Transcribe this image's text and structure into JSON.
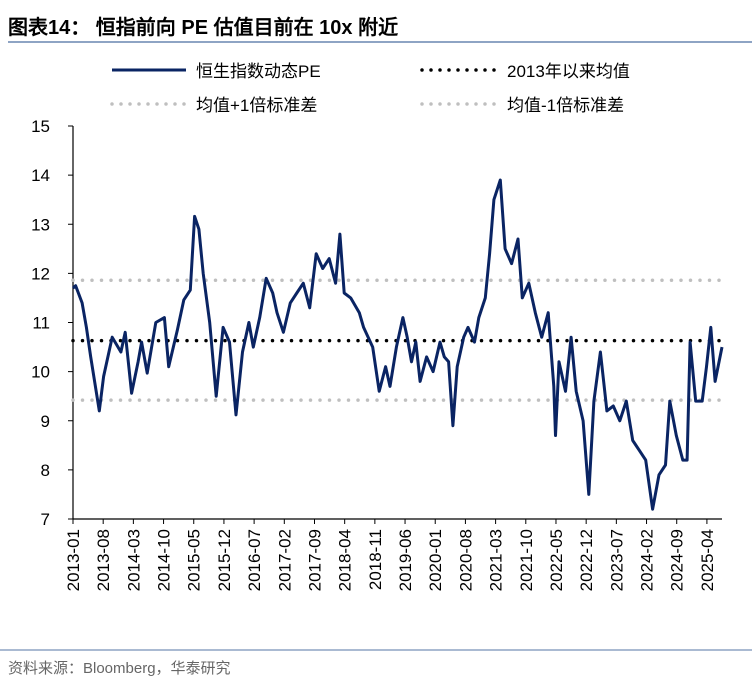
{
  "header": {
    "title": "图表14：  恒指前向 PE 估值目前在 10x 附近"
  },
  "footer": {
    "source": "资料来源：Bloomberg，华泰研究"
  },
  "colors": {
    "series": "#0a2463",
    "mean": "#000000",
    "band": "#bfbfbf",
    "rule": "#8ea4c4"
  },
  "chart_data": {
    "type": "line",
    "title": "恒指前向 PE 估值目前在 10x 附近",
    "xlabel": "",
    "ylabel": "",
    "ylim": [
      7,
      15
    ],
    "yticks": [
      "7",
      "8",
      "9",
      "10",
      "11",
      "12",
      "13",
      "14",
      "15"
    ],
    "x_unit": "months since 2013-01",
    "xlim": [
      0,
      150.5
    ],
    "xticks": [
      {
        "m": 0,
        "label": "2013-01"
      },
      {
        "m": 7,
        "label": "2013-08"
      },
      {
        "m": 14,
        "label": "2014-03"
      },
      {
        "m": 21,
        "label": "2014-10"
      },
      {
        "m": 28,
        "label": "2015-05"
      },
      {
        "m": 35,
        "label": "2015-12"
      },
      {
        "m": 42,
        "label": "2016-07"
      },
      {
        "m": 49,
        "label": "2017-02"
      },
      {
        "m": 56,
        "label": "2017-09"
      },
      {
        "m": 63,
        "label": "2018-04"
      },
      {
        "m": 70,
        "label": "2018-11"
      },
      {
        "m": 77,
        "label": "2019-06"
      },
      {
        "m": 84,
        "label": "2020-01"
      },
      {
        "m": 91,
        "label": "2020-08"
      },
      {
        "m": 98,
        "label": "2021-03"
      },
      {
        "m": 105,
        "label": "2021-10"
      },
      {
        "m": 112,
        "label": "2022-05"
      },
      {
        "m": 119,
        "label": "2022-12"
      },
      {
        "m": 126,
        "label": "2023-07"
      },
      {
        "m": 133,
        "label": "2024-02"
      },
      {
        "m": 140,
        "label": "2024-09"
      },
      {
        "m": 147,
        "label": "2025-04"
      }
    ],
    "legend": {
      "placement": "top",
      "entries": [
        "恒生指数动态PE",
        "2013年以来均值",
        "均值+1倍标准差",
        "均值-1倍标准差"
      ]
    },
    "reference_lines": {
      "mean": 10.63,
      "plus_1sd": 11.86,
      "minus_1sd": 9.42
    },
    "series": [
      {
        "name": "恒生指数动态PE",
        "x": [
          0,
          0.6,
          2.1,
          3.1,
          4.1,
          6.1,
          7.1,
          9.1,
          11.1,
          12.1,
          13.6,
          15.1,
          15.9,
          17.2,
          19.2,
          21.2,
          22.2,
          24.2,
          25.7,
          27.2,
          28.2,
          29.2,
          30.2,
          31.7,
          33.2,
          34.8,
          36.3,
          37.8,
          39.3,
          40.8,
          41.8,
          43.3,
          44.8,
          46.3,
          47.3,
          48.8,
          50.4,
          51.9,
          53.4,
          54.9,
          56.4,
          57.9,
          59.4,
          60.9,
          61.9,
          62.9,
          64.4,
          66.4,
          67.4,
          69.5,
          71.0,
          72.5,
          73.5,
          75.0,
          76.5,
          77.5,
          78.5,
          79.5,
          80.5,
          82.0,
          83.5,
          85.1,
          86.1,
          87.1,
          88.1,
          89.1,
          90.6,
          91.6,
          93.1,
          94.1,
          95.6,
          96.6,
          97.6,
          99.1,
          100.2,
          101.7,
          103.2,
          104.2,
          105.7,
          107.2,
          108.7,
          110.2,
          111.5,
          111.9,
          112.7,
          114.2,
          115.5,
          116.7,
          118.3,
          119.6,
          120.8,
          122.3,
          123.8,
          125.3,
          126.8,
          128.3,
          129.8,
          131.3,
          132.8,
          134.4,
          135.9,
          137.4,
          138.4,
          139.9,
          141.4,
          142.4,
          143.1,
          144.4,
          145.9,
          146.9,
          147.9,
          148.9,
          150.5
        ],
        "values": [
          11.7,
          11.75,
          11.4,
          10.9,
          10.3,
          9.2,
          9.9,
          10.7,
          10.4,
          10.8,
          9.56,
          10.2,
          10.6,
          9.97,
          11.0,
          11.1,
          10.1,
          10.85,
          11.46,
          11.66,
          13.16,
          12.9,
          12.0,
          11.0,
          9.5,
          10.9,
          10.6,
          9.12,
          10.4,
          11.0,
          10.5,
          11.1,
          11.9,
          11.6,
          11.2,
          10.8,
          11.4,
          11.6,
          11.8,
          11.3,
          12.4,
          12.1,
          12.3,
          11.8,
          12.8,
          11.6,
          11.5,
          11.2,
          10.9,
          10.5,
          9.6,
          10.1,
          9.7,
          10.5,
          11.1,
          10.7,
          10.2,
          10.6,
          9.8,
          10.3,
          10.0,
          10.6,
          10.3,
          10.2,
          8.9,
          10.1,
          10.7,
          10.9,
          10.6,
          11.1,
          11.5,
          12.4,
          13.5,
          13.9,
          12.5,
          12.2,
          12.7,
          11.5,
          11.8,
          11.2,
          10.7,
          11.2,
          9.7,
          8.7,
          10.2,
          9.6,
          10.7,
          9.6,
          9.0,
          7.5,
          9.4,
          10.4,
          9.2,
          9.3,
          9.0,
          9.4,
          8.6,
          8.4,
          8.2,
          7.2,
          7.9,
          8.1,
          9.4,
          8.7,
          8.2,
          8.2,
          10.6,
          9.4,
          9.4,
          10.1,
          10.9,
          9.8,
          10.5
        ]
      }
    ]
  }
}
